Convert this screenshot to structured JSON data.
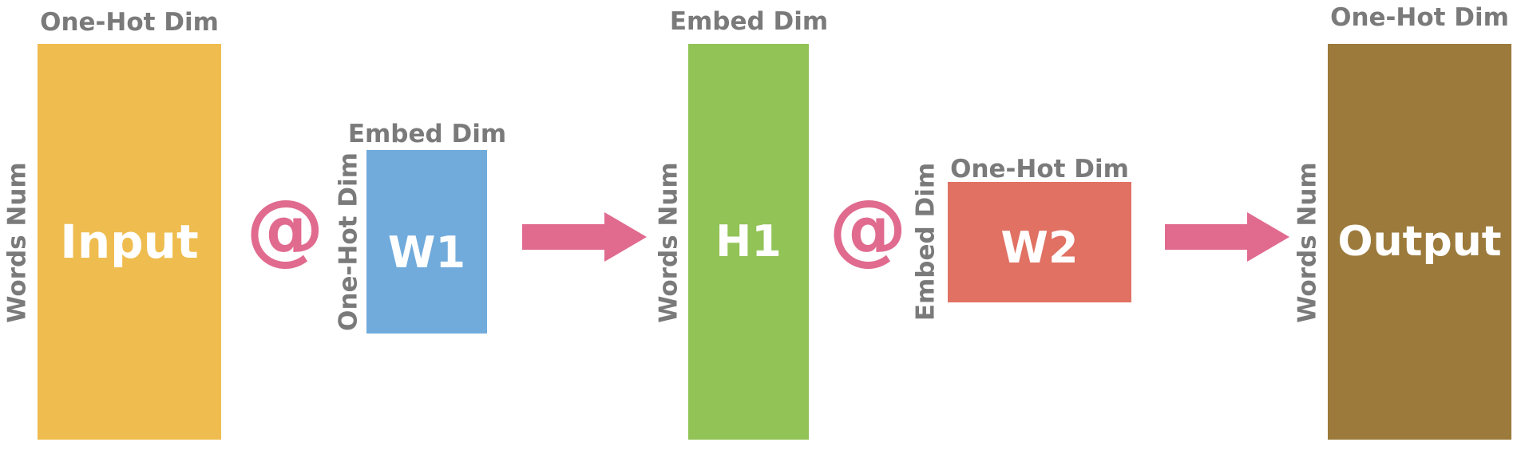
{
  "colors": {
    "input": "#efbc4f",
    "w1": "#71abdc",
    "h1": "#92c356",
    "w2": "#e07163",
    "output": "#9c7a3b",
    "operator": "#e06b8f",
    "arrow": "#e06b8f",
    "label_text": "#7a7a7a"
  },
  "blocks": {
    "input": {
      "name": "Input",
      "top_label": "One-Hot Dim",
      "side_label": "Words Num"
    },
    "w1": {
      "name": "W1",
      "top_label": "Embed Dim",
      "side_label": "One-Hot Dim"
    },
    "h1": {
      "name": "H1",
      "top_label": "Embed Dim",
      "side_label": "Words Num"
    },
    "w2": {
      "name": "W2",
      "top_label": "One-Hot Dim",
      "side_label": "Embed Dim"
    },
    "output": {
      "name": "Output",
      "top_label": "One-Hot Dim",
      "side_label": "Words Num"
    }
  },
  "operators": {
    "matmul_1": "@",
    "matmul_2": "@"
  }
}
